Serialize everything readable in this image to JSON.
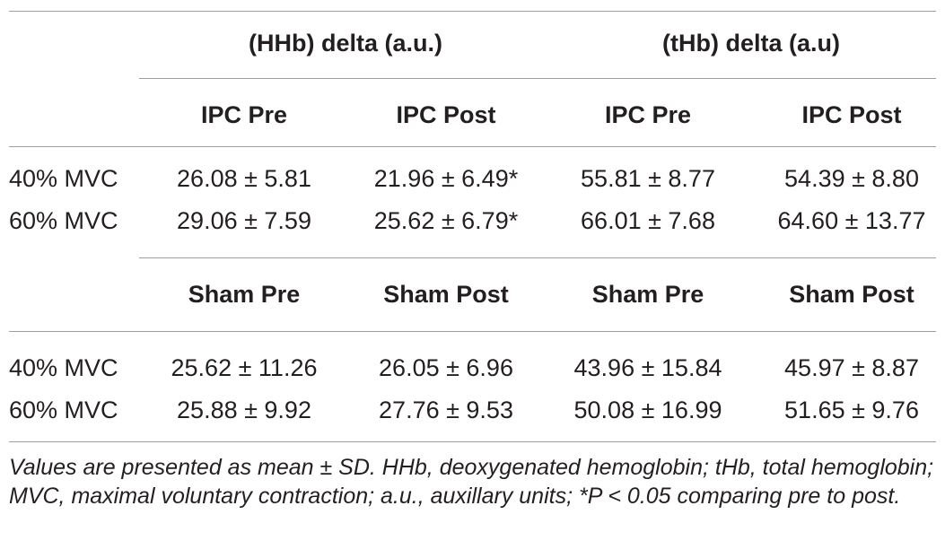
{
  "group_headers": {
    "hhb": "(HHb) delta (a.u.)",
    "thb": "(tHb) delta (a.u)"
  },
  "sections": [
    {
      "col_headers": [
        "IPC Pre",
        "IPC Post",
        "IPC Pre",
        "IPC Post"
      ],
      "rows": [
        {
          "label": "40% MVC",
          "cells": [
            "26.08 ± 5.81",
            "21.96 ± 6.49*",
            "55.81 ± 8.77",
            "54.39 ± 8.80"
          ]
        },
        {
          "label": "60% MVC",
          "cells": [
            "29.06 ± 7.59",
            "25.62 ± 6.79*",
            "66.01 ± 7.68",
            "64.60 ± 13.77"
          ]
        }
      ]
    },
    {
      "col_headers": [
        "Sham Pre",
        "Sham Post",
        "Sham Pre",
        "Sham Post"
      ],
      "rows": [
        {
          "label": "40% MVC",
          "cells": [
            "25.62 ± 11.26",
            "26.05 ± 6.96",
            "43.96 ± 15.84",
            "45.97 ± 8.87"
          ]
        },
        {
          "label": "60% MVC",
          "cells": [
            "25.88 ± 9.92",
            "27.76 ± 9.53",
            "50.08 ± 16.99",
            "51.65 ± 9.76"
          ]
        }
      ]
    }
  ],
  "footnote": "Values are presented as mean ± SD. HHb, deoxygenated hemoglobin; tHb, total hemoglobin; MVC, maximal voluntary contraction; a.u., auxillary units; *P < 0.05 comparing pre to post."
}
